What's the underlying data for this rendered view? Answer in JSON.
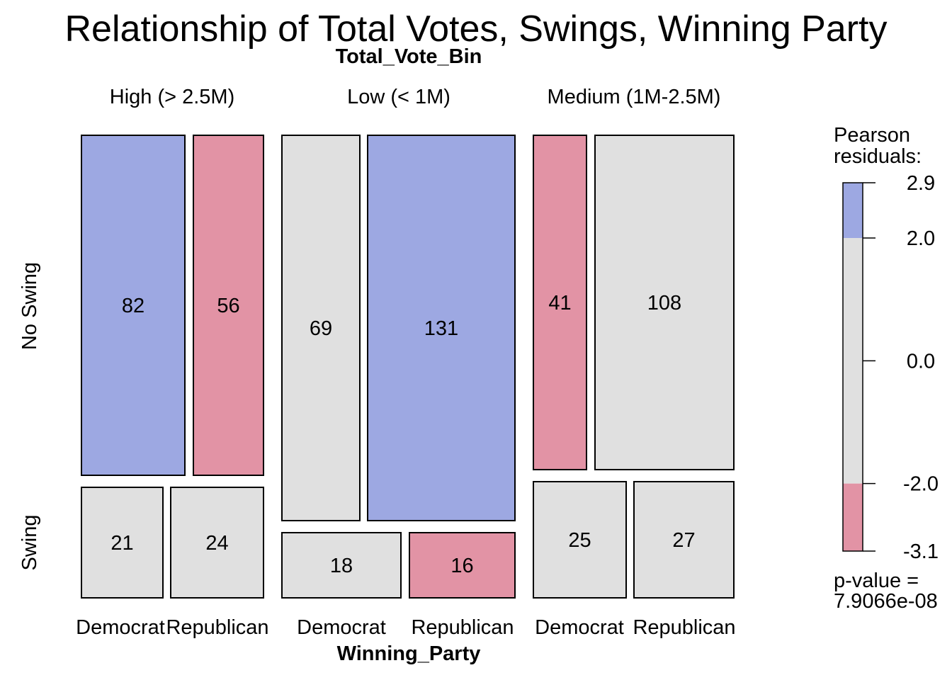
{
  "chart_data": {
    "type": "mosaic",
    "title": "Relationship of Total Votes, Swings, Winning Party",
    "column_variable": "Total_Vote_Bin",
    "row_variable_x": "Winning_Party",
    "column_categories": [
      "High (> 2.5M)",
      "Low (< 1M)",
      "Medium (1M-2.5M)"
    ],
    "party_categories": [
      "Democrat",
      "Republican"
    ],
    "row_categories": [
      "No Swing",
      "Swing"
    ],
    "cells": [
      {
        "bin": "High (> 2.5M)",
        "swing": "No Swing",
        "party": "Democrat",
        "count": 82,
        "residual_class": "high"
      },
      {
        "bin": "High (> 2.5M)",
        "swing": "No Swing",
        "party": "Republican",
        "count": 56,
        "residual_class": "low"
      },
      {
        "bin": "High (> 2.5M)",
        "swing": "Swing",
        "party": "Democrat",
        "count": 21,
        "residual_class": "neutral"
      },
      {
        "bin": "High (> 2.5M)",
        "swing": "Swing",
        "party": "Republican",
        "count": 24,
        "residual_class": "neutral"
      },
      {
        "bin": "Low (< 1M)",
        "swing": "No Swing",
        "party": "Democrat",
        "count": 69,
        "residual_class": "neutral"
      },
      {
        "bin": "Low (< 1M)",
        "swing": "No Swing",
        "party": "Republican",
        "count": 131,
        "residual_class": "high"
      },
      {
        "bin": "Low (< 1M)",
        "swing": "Swing",
        "party": "Democrat",
        "count": 18,
        "residual_class": "neutral"
      },
      {
        "bin": "Low (< 1M)",
        "swing": "Swing",
        "party": "Republican",
        "count": 16,
        "residual_class": "low"
      },
      {
        "bin": "Medium (1M-2.5M)",
        "swing": "No Swing",
        "party": "Democrat",
        "count": 41,
        "residual_class": "low"
      },
      {
        "bin": "Medium (1M-2.5M)",
        "swing": "No Swing",
        "party": "Republican",
        "count": 108,
        "residual_class": "neutral"
      },
      {
        "bin": "Medium (1M-2.5M)",
        "swing": "Swing",
        "party": "Democrat",
        "count": 25,
        "residual_class": "neutral"
      },
      {
        "bin": "Medium (1M-2.5M)",
        "swing": "Swing",
        "party": "Republican",
        "count": 27,
        "residual_class": "neutral"
      }
    ],
    "legend": {
      "title": "Pearson\nresiduals:",
      "title_line1": "Pearson",
      "title_line2": "residuals:",
      "ticks": [
        "2.9",
        "2.0",
        "0.0",
        "-2.0",
        "-3.1"
      ],
      "tick_values": [
        2.9,
        2.0,
        0.0,
        -2.0,
        -3.1
      ],
      "range": [
        -3.1,
        2.9
      ],
      "p_value_label": "p-value =",
      "p_value": "7.9066e-08"
    },
    "colors": {
      "high": "#9DA8E2",
      "neutral": "#E0E0E0",
      "low": "#E293A5"
    }
  }
}
